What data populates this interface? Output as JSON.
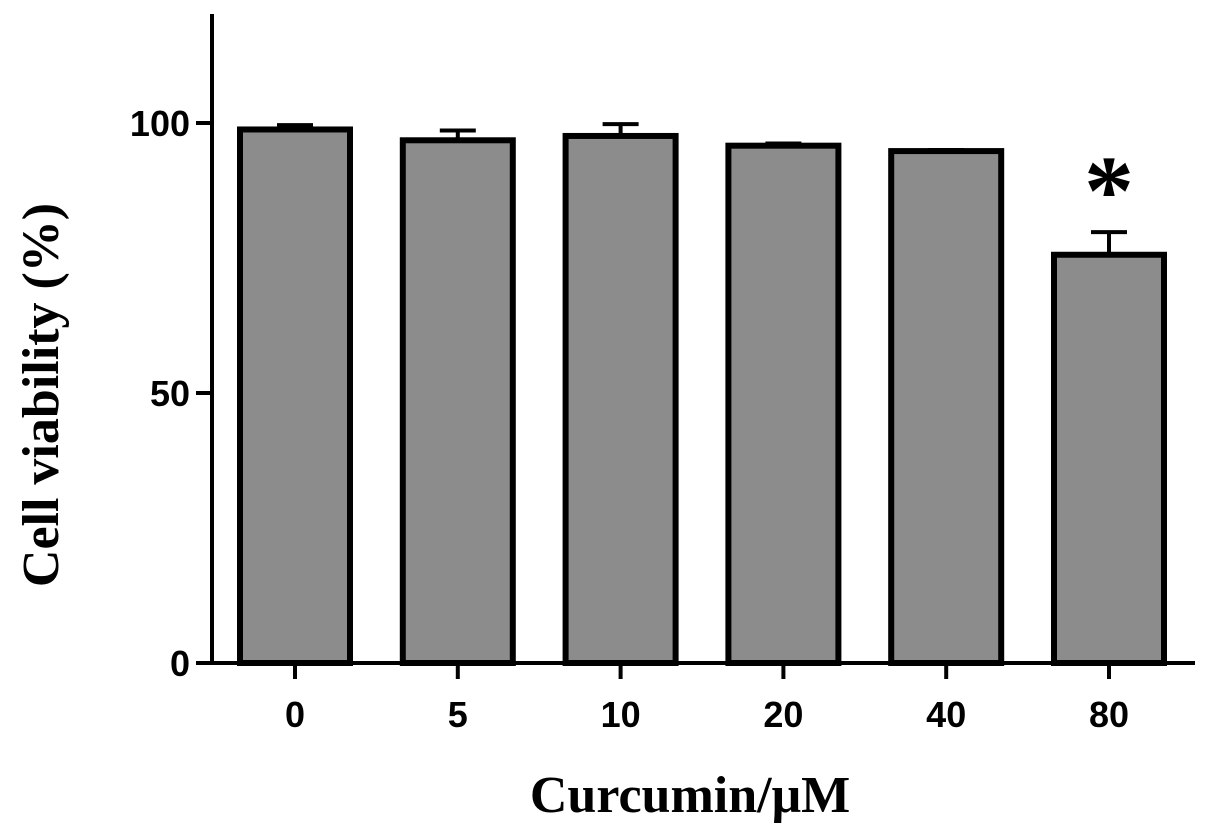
{
  "chart_data": {
    "type": "bar",
    "categories": [
      "0",
      "5",
      "10",
      "20",
      "40",
      "80"
    ],
    "values": [
      98.8,
      96.8,
      97.6,
      95.8,
      94.8,
      75.6
    ],
    "errors": [
      0.8,
      1.8,
      2.2,
      0.4,
      0.2,
      4.2
    ],
    "xlabel": "Curcumin/μM",
    "ylabel": "Cell viability (%)",
    "ylim": [
      0,
      120
    ],
    "yticks": [
      0,
      50,
      100
    ],
    "annotations": [
      {
        "category": "80",
        "text": "*"
      }
    ],
    "bar_color": "#8c8c8c",
    "edge_color": "#000000",
    "grid": false
  }
}
